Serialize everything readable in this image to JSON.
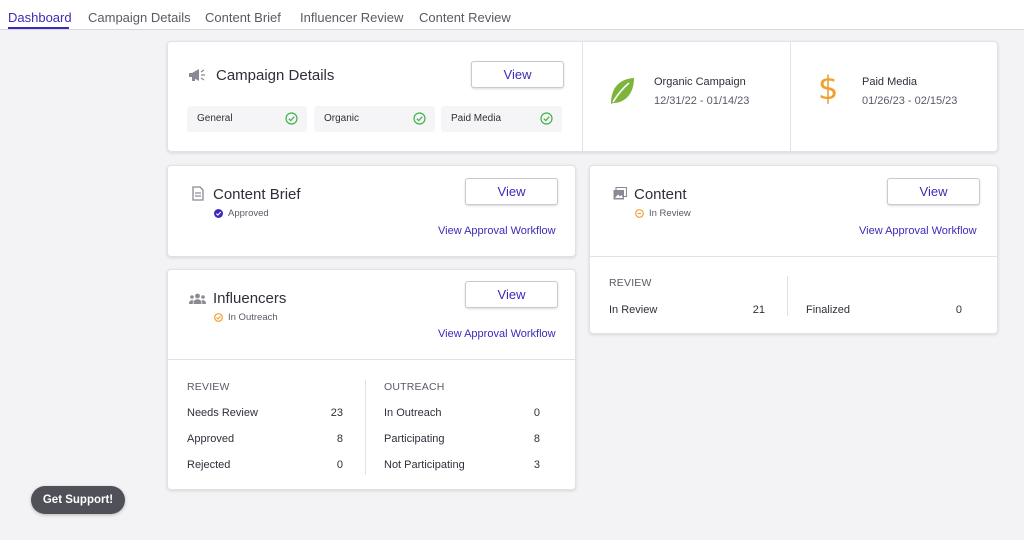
{
  "tabs": [
    {
      "label": "Dashboard"
    },
    {
      "label": "Campaign Details"
    },
    {
      "label": "Content Brief"
    },
    {
      "label": "Influencer Review"
    },
    {
      "label": "Content Review"
    }
  ],
  "campaign_details": {
    "title": "Campaign Details",
    "view_label": "View",
    "items": [
      {
        "label": "General",
        "complete": true
      },
      {
        "label": "Organic",
        "complete": true
      },
      {
        "label": "Paid Media",
        "complete": true
      }
    ]
  },
  "campaigns": [
    {
      "name": "Organic Campaign",
      "dates": "12/31/22 - 01/14/23",
      "icon": "leaf-icon",
      "color": "#7db53a"
    },
    {
      "name": "Paid Media",
      "dates": "01/26/23 - 02/15/23",
      "icon": "dollar-icon",
      "color": "#f0a030"
    }
  ],
  "content_brief": {
    "title": "Content Brief",
    "status": "Approved",
    "view_label": "View",
    "workflow_link": "View Approval Workflow"
  },
  "content": {
    "title": "Content",
    "status": "In Review",
    "view_label": "View",
    "workflow_link": "View Approval Workflow",
    "review_heading": "REVIEW",
    "rows": [
      {
        "label": "In Review",
        "value": "21"
      },
      {
        "label": "Finalized",
        "value": "0"
      }
    ]
  },
  "influencers": {
    "title": "Influencers",
    "status": "In Outreach",
    "view_label": "View",
    "workflow_link": "View Approval Workflow",
    "review_heading": "REVIEW",
    "review_rows": [
      {
        "label": "Needs Review",
        "value": "23"
      },
      {
        "label": "Approved",
        "value": "8"
      },
      {
        "label": "Rejected",
        "value": "0"
      }
    ],
    "outreach_heading": "OUTREACH",
    "outreach_rows": [
      {
        "label": "In Outreach",
        "value": "0"
      },
      {
        "label": "Participating",
        "value": "8"
      },
      {
        "label": "Not Participating",
        "value": "3"
      }
    ]
  },
  "support_label": "Get Support!",
  "colors": {
    "accent": "#3b2bb8",
    "success": "#3fb24a",
    "warning": "#f0a030"
  }
}
